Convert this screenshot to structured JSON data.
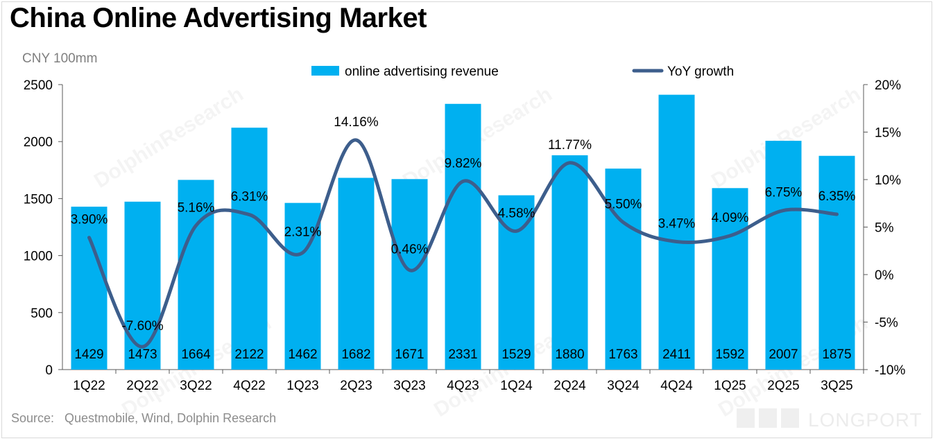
{
  "title": "China Online Advertising Market",
  "unit_label": "CNY 100mm",
  "source": "Source:   Questmobile, Wind, Dolphin Research",
  "watermark": "DolphinResearch",
  "brand": "LONGPORT",
  "colors": {
    "bar": "#00b0f0",
    "line": "#3d5e8c"
  },
  "chart_data": {
    "type": "bar",
    "categories": [
      "1Q22",
      "2Q22",
      "3Q22",
      "4Q22",
      "1Q23",
      "2Q23",
      "3Q23",
      "4Q23",
      "1Q24",
      "2Q24",
      "3Q24",
      "4Q24",
      "1Q25",
      "2Q25",
      "3Q25"
    ],
    "series": [
      {
        "name": "online advertising revenue",
        "type": "bar",
        "axis": "left",
        "values": [
          1429,
          1473,
          1664,
          2122,
          1462,
          1682,
          1671,
          2331,
          1529,
          1880,
          1763,
          2411,
          1592,
          2007,
          1875
        ]
      },
      {
        "name": "YoY growth",
        "type": "line",
        "axis": "right",
        "values": [
          3.9,
          -7.6,
          5.16,
          6.31,
          2.31,
          14.16,
          0.46,
          9.82,
          4.58,
          11.77,
          5.5,
          3.47,
          4.09,
          6.75,
          6.35
        ]
      }
    ],
    "bar_labels": [
      "1429",
      "1473",
      "1664",
      "2122",
      "1462",
      "1682",
      "1671",
      "2331",
      "1529",
      "1880",
      "1763",
      "2411",
      "1592",
      "2007",
      "1875"
    ],
    "line_labels": [
      "3.90%",
      "-7.60%",
      "5.16%",
      "6.31%",
      "2.31%",
      "14.16%",
      "0.46%",
      "9.82%",
      "4.58%",
      "11.77%",
      "5.50%",
      "3.47%",
      "4.09%",
      "6.75%",
      "6.35%"
    ],
    "ylim_left": [
      0,
      2500
    ],
    "yticks_left": [
      "0",
      "500",
      "1000",
      "1500",
      "2000",
      "2500"
    ],
    "ylim_right": [
      -10,
      20
    ],
    "yticks_right": [
      "-10%",
      "-5%",
      "0%",
      "5%",
      "10%",
      "15%",
      "20%"
    ],
    "legend_position": "top",
    "grid": false
  }
}
